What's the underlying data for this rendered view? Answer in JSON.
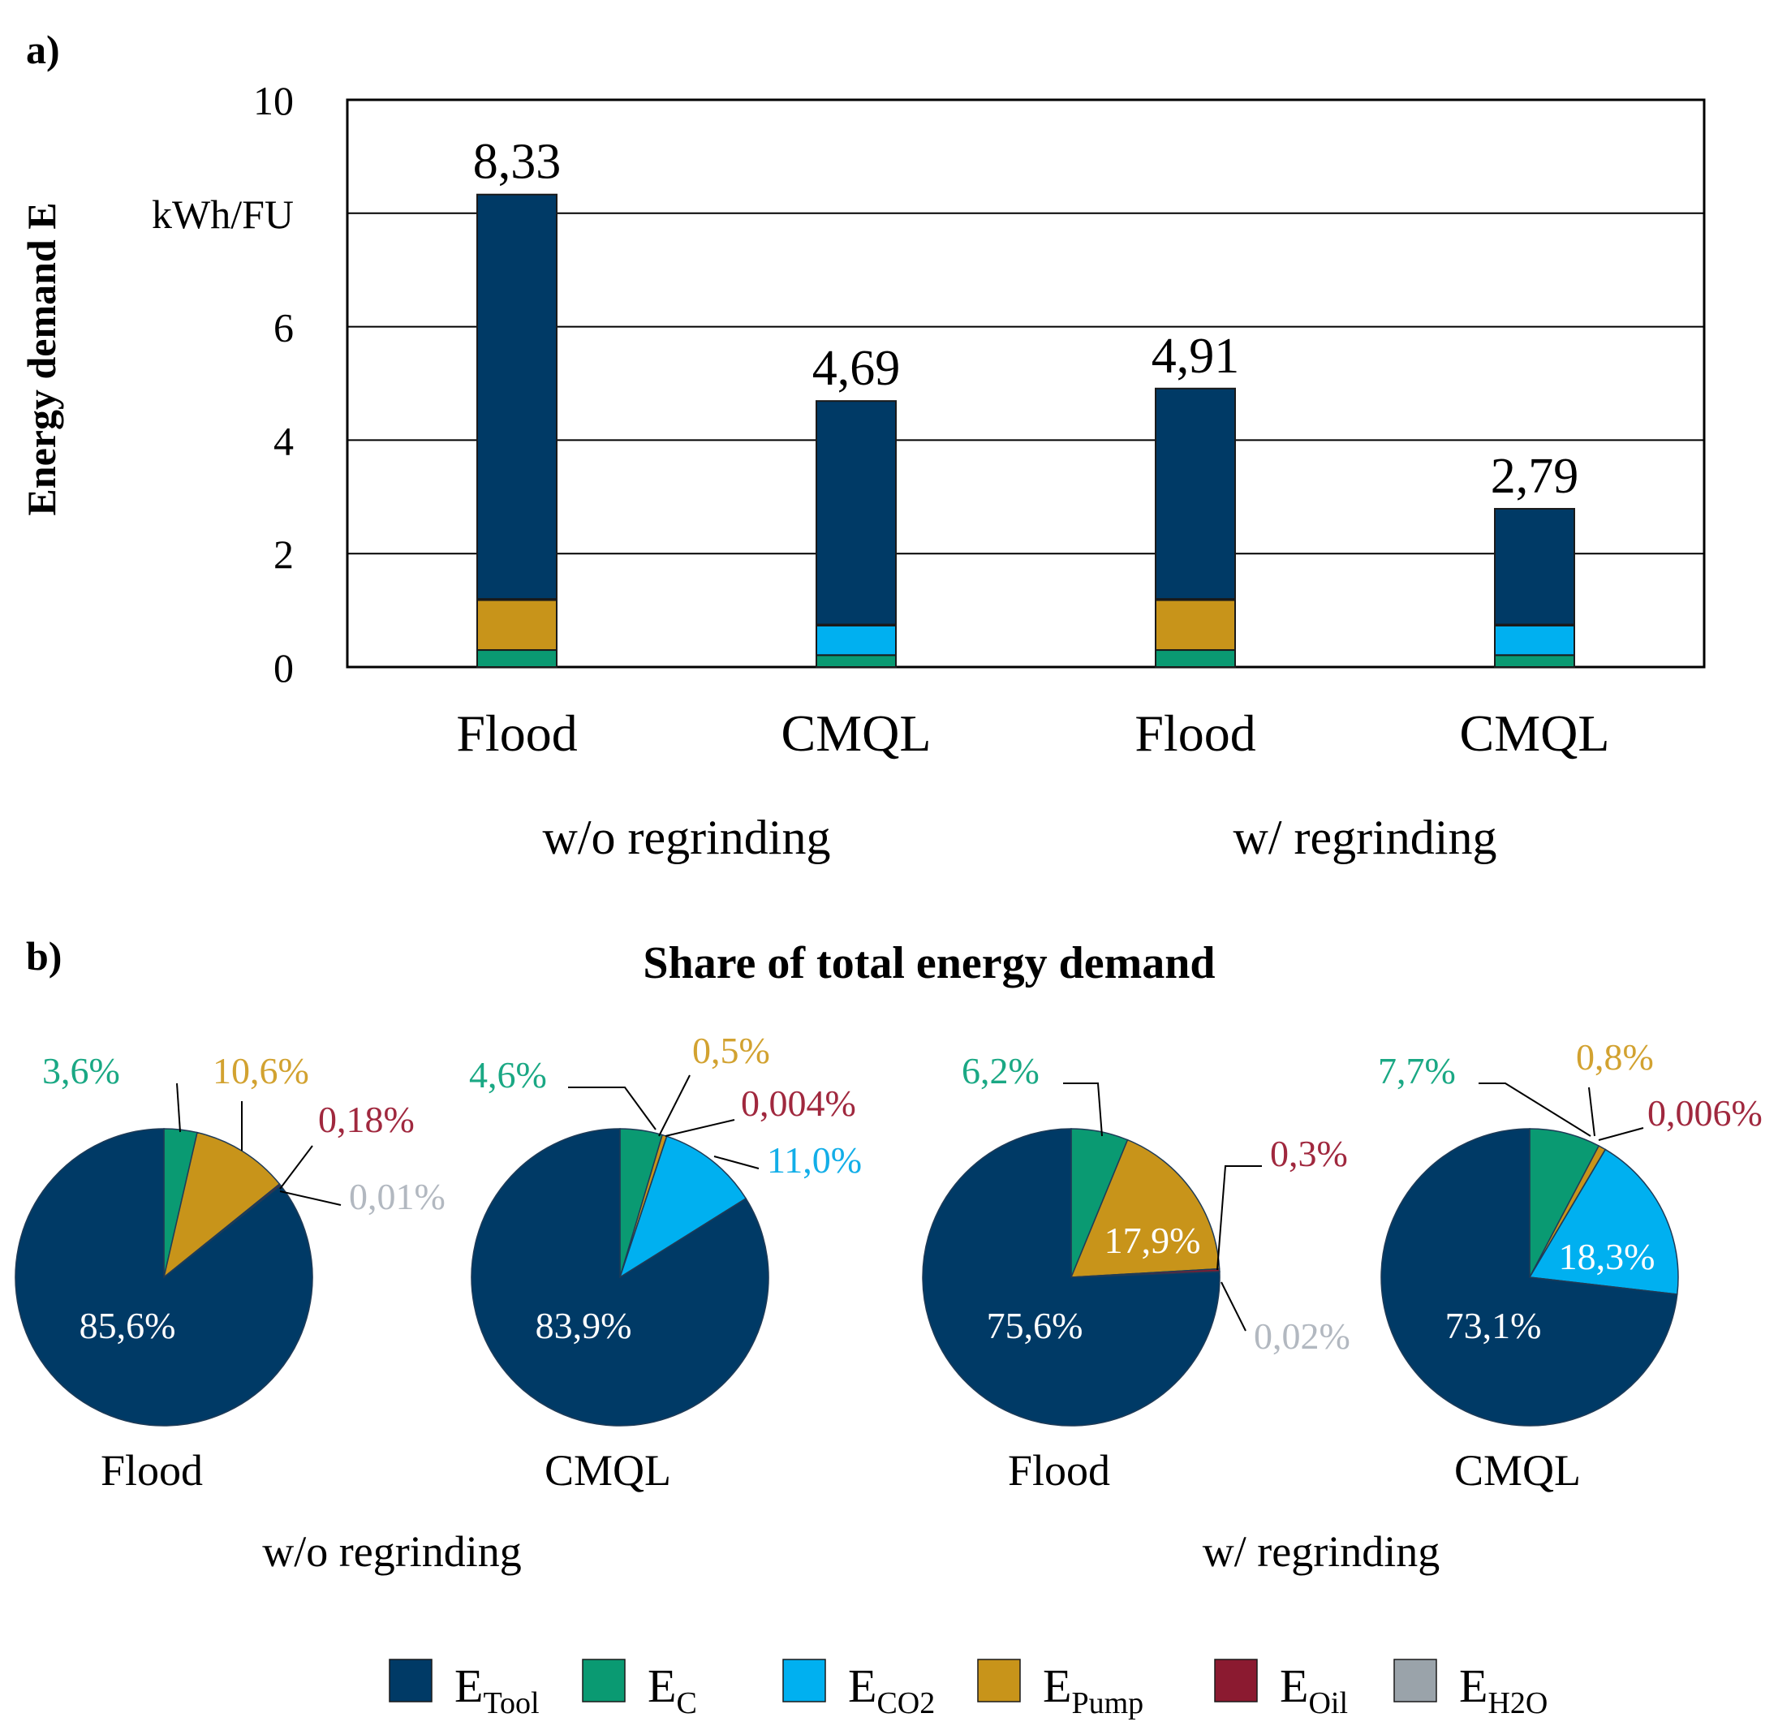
{
  "panel_a_label": "a)",
  "panel_b_label": "b)",
  "chart_data": [
    {
      "type": "bar",
      "stacked": true,
      "ylabel": "Energy demand E",
      "yunit": "kWh/FU",
      "ylim": [
        0,
        10
      ],
      "yticks": [
        "0",
        "2",
        "4",
        "6",
        "10"
      ],
      "grid": true,
      "categories": [
        "Flood",
        "CMQL",
        "Flood",
        "CMQL"
      ],
      "groups": [
        {
          "label": "w/o regrinding",
          "span": [
            0,
            1
          ]
        },
        {
          "label": "w/ regrinding",
          "span": [
            2,
            3
          ]
        }
      ],
      "totals": [
        8.33,
        4.69,
        4.91,
        2.79
      ],
      "total_labels": [
        "8,33",
        "4,69",
        "4,91",
        "2,79"
      ],
      "series": [
        {
          "name": "E_C",
          "color": "#0a9a72",
          "values": [
            0.3,
            0.21,
            0.3,
            0.21
          ]
        },
        {
          "name": "E_CO2",
          "color": "#00b0f0",
          "values": [
            0,
            0.52,
            0,
            0.52
          ]
        },
        {
          "name": "E_Pump",
          "color": "#c8941a",
          "values": [
            0.88,
            0.02,
            0.88,
            0.02
          ]
        },
        {
          "name": "E_Oil",
          "color": "#8b1a30",
          "values": [
            0.02,
            0.0,
            0.02,
            0.0
          ]
        },
        {
          "name": "E_H2O",
          "color": "#9aa3aa",
          "values": [
            0.0,
            0,
            0.0,
            0
          ]
        },
        {
          "name": "E_Tool",
          "color": "#003a66",
          "values": [
            7.13,
            3.94,
            3.71,
            2.04
          ]
        }
      ]
    },
    {
      "type": "pie",
      "title": "Share of total energy demand",
      "groups": [
        {
          "label": "w/o regrinding",
          "span": [
            0,
            1
          ]
        },
        {
          "label": "w/ regrinding",
          "span": [
            2,
            3
          ]
        }
      ],
      "pies": [
        {
          "label": "Flood",
          "slices": [
            {
              "name": "E_C",
              "value": 3.6,
              "label": "3,6%"
            },
            {
              "name": "E_Pump",
              "value": 10.6,
              "label": "10,6%"
            },
            {
              "name": "E_Oil",
              "value": 0.18,
              "label": "0,18%"
            },
            {
              "name": "E_H2O",
              "value": 0.01,
              "label": "0,01%"
            },
            {
              "name": "E_Tool",
              "value": 85.6,
              "label": "85,6%"
            }
          ]
        },
        {
          "label": "CMQL",
          "slices": [
            {
              "name": "E_C",
              "value": 4.6,
              "label": "4,6%"
            },
            {
              "name": "E_Pump",
              "value": 0.5,
              "label": "0,5%"
            },
            {
              "name": "E_Oil",
              "value": 0.004,
              "label": "0,004%"
            },
            {
              "name": "E_CO2",
              "value": 11.0,
              "label": "11,0%"
            },
            {
              "name": "E_Tool",
              "value": 83.9,
              "label": "83,9%"
            }
          ]
        },
        {
          "label": "Flood",
          "slices": [
            {
              "name": "E_C",
              "value": 6.2,
              "label": "6,2%"
            },
            {
              "name": "E_Pump",
              "value": 17.9,
              "label": "17,9%"
            },
            {
              "name": "E_Oil",
              "value": 0.3,
              "label": "0,3%"
            },
            {
              "name": "E_H2O",
              "value": 0.02,
              "label": "0,02%"
            },
            {
              "name": "E_Tool",
              "value": 75.6,
              "label": "75,6%"
            }
          ]
        },
        {
          "label": "CMQL",
          "slices": [
            {
              "name": "E_C",
              "value": 7.7,
              "label": "7,7%"
            },
            {
              "name": "E_Pump",
              "value": 0.8,
              "label": "0,8%"
            },
            {
              "name": "E_Oil",
              "value": 0.006,
              "label": "0,006%"
            },
            {
              "name": "E_CO2",
              "value": 18.3,
              "label": "18,3%"
            },
            {
              "name": "E_Tool",
              "value": 73.1,
              "label": "73,1%"
            }
          ]
        }
      ]
    }
  ],
  "legend": [
    {
      "key": "E_Tool",
      "main": "E",
      "sub": "Tool",
      "color": "#003a66"
    },
    {
      "key": "E_C",
      "main": "E",
      "sub": "C",
      "color": "#0a9a72"
    },
    {
      "key": "E_CO2",
      "main": "E",
      "sub": "CO2",
      "color": "#00b0f0"
    },
    {
      "key": "E_Pump",
      "main": "E",
      "sub": "Pump",
      "color": "#c8941a"
    },
    {
      "key": "E_Oil",
      "main": "E",
      "sub": "Oil",
      "color": "#8b1a30"
    },
    {
      "key": "E_H2O",
      "main": "E",
      "sub": "H2O",
      "color": "#9aa3aa"
    }
  ],
  "slice_colors": {
    "E_Tool": "#003a66",
    "E_C": "#0a9a72",
    "E_CO2": "#00b0f0",
    "E_Pump": "#c8941a",
    "E_Oil": "#8b1a30",
    "E_H2O": "#9aa3aa"
  },
  "label_colors": {
    "E_Tool": "#ffffff",
    "E_C": "#1aa884",
    "E_CO2": "#12aee8",
    "E_Pump": "#d2a230",
    "E_Oil": "#a0283e",
    "E_H2O": "#b2b8c0"
  }
}
